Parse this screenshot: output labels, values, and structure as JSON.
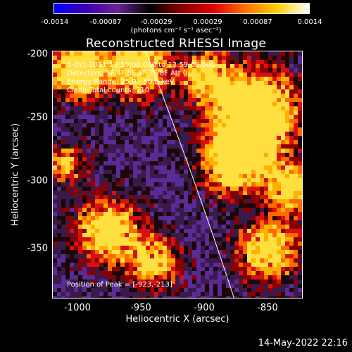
{
  "colorbar": {
    "tick_labels": [
      "-0.0014",
      "-0.00087",
      "-0.00029",
      "0.00029",
      "0.00087",
      "0.0014"
    ],
    "units": "(photons cm⁻² s⁻¹ asec⁻²)",
    "colors": [
      "#0000ff",
      "#3a00b0",
      "#6a2390",
      "#000000",
      "#8a0000",
      "#e00000",
      "#ff7000",
      "#ffd000",
      "#ffffff"
    ]
  },
  "title": "Reconstructed RHESSI Image",
  "info": {
    "time": "5-Oct-2011 13:59:00.000 to 13:59:00.000",
    "detectors": "Detectors: 3F 4F 5F 6F 7F 8F   Att 0",
    "energy": "Energy Range: 25.0 - 50.0 keV",
    "method": "Clean    Total counts: 710",
    "peak": "Position of Peak = [-923,-213]"
  },
  "axes": {
    "xlabel": "Heliocentric X (arcsec)",
    "ylabel": "Heliocentric Y (arcsec)",
    "xticks": [
      "-1000",
      "-950",
      "-900",
      "-850"
    ],
    "yticks": [
      "-200",
      "-250",
      "-300",
      "-350"
    ],
    "xrange": [
      -1014,
      -816
    ],
    "yrange": [
      -196,
      -392
    ]
  },
  "footer": {
    "timestamp": "14-May-2022 22:16"
  }
}
